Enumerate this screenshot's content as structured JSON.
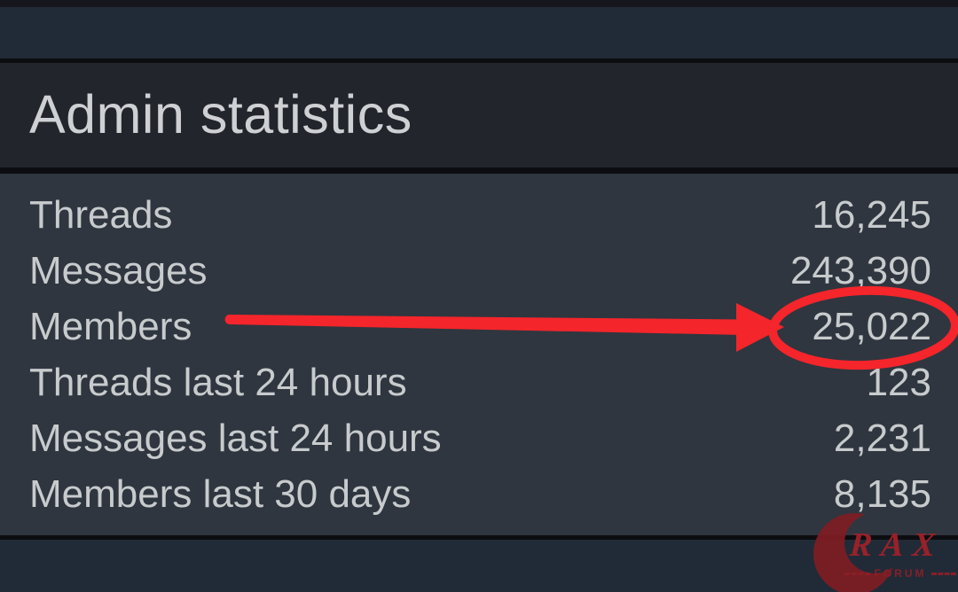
{
  "panel": {
    "title": "Admin statistics",
    "rows": [
      {
        "label": "Threads",
        "value": "16,245",
        "highlighted": false
      },
      {
        "label": "Messages",
        "value": "243,390",
        "highlighted": false
      },
      {
        "label": "Members",
        "value": "25,022",
        "highlighted": true
      },
      {
        "label": "Threads last 24 hours",
        "value": "123",
        "highlighted": false
      },
      {
        "label": "Messages last 24 hours",
        "value": "2,231",
        "highlighted": false
      },
      {
        "label": "Members last 30 days",
        "value": "8,135",
        "highlighted": false
      }
    ]
  },
  "annotation": {
    "shape": "arrow-pointing-to-circled-value",
    "target_label": "Members",
    "target_value": "25,022",
    "color": "#f4252b"
  },
  "watermark": {
    "letters": "RAX",
    "tagline": "FORUM",
    "color": "#8b2026"
  },
  "colors": {
    "top_strip": "#212b37",
    "header_bg": "#23252d",
    "body_bg": "#2f363f",
    "footer_bg": "#212b37",
    "separator": "#0c0d10",
    "text": "#c8cbcd",
    "title_text": "#ced0d3",
    "accent_red": "#f4252b",
    "watermark_red": "#8b2026"
  }
}
